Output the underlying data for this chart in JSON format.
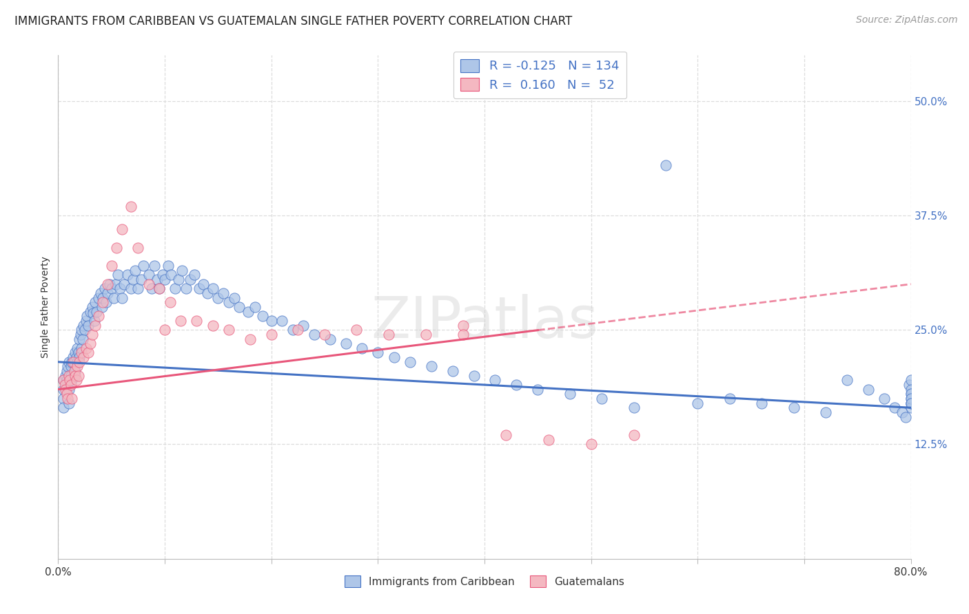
{
  "title": "IMMIGRANTS FROM CARIBBEAN VS GUATEMALAN SINGLE FATHER POVERTY CORRELATION CHART",
  "source": "Source: ZipAtlas.com",
  "ylabel": "Single Father Poverty",
  "ytick_labels": [
    "12.5%",
    "25.0%",
    "37.5%",
    "50.0%"
  ],
  "ytick_values": [
    0.125,
    0.25,
    0.375,
    0.5
  ],
  "xlim": [
    0.0,
    0.8
  ],
  "ylim": [
    0.0,
    0.55
  ],
  "legend_entry1": {
    "color": "#aec6e8",
    "R": "-0.125",
    "N": "134",
    "label": "Immigrants from Caribbean"
  },
  "legend_entry2": {
    "color": "#f4b8c1",
    "R": "0.160",
    "N": "52",
    "label": "Guatemalans"
  },
  "scatter_color1": "#aec6e8",
  "scatter_color2": "#f4b8c1",
  "line_color1": "#4472c4",
  "line_color2": "#e8567a",
  "watermark": "ZIPatlas",
  "title_fontsize": 12,
  "axis_label_fontsize": 10,
  "tick_fontsize": 11,
  "source_fontsize": 10,
  "background_color": "#ffffff",
  "grid_color": "#dddddd",
  "caribbean_x": [
    0.005,
    0.005,
    0.005,
    0.005,
    0.007,
    0.007,
    0.008,
    0.008,
    0.009,
    0.01,
    0.01,
    0.01,
    0.012,
    0.012,
    0.013,
    0.013,
    0.014,
    0.015,
    0.015,
    0.016,
    0.016,
    0.017,
    0.018,
    0.018,
    0.019,
    0.02,
    0.02,
    0.021,
    0.022,
    0.022,
    0.023,
    0.024,
    0.025,
    0.026,
    0.027,
    0.028,
    0.03,
    0.032,
    0.033,
    0.034,
    0.035,
    0.036,
    0.038,
    0.04,
    0.041,
    0.042,
    0.044,
    0.045,
    0.046,
    0.048,
    0.05,
    0.052,
    0.054,
    0.056,
    0.058,
    0.06,
    0.062,
    0.065,
    0.068,
    0.07,
    0.072,
    0.075,
    0.078,
    0.08,
    0.085,
    0.088,
    0.09,
    0.093,
    0.095,
    0.098,
    0.1,
    0.103,
    0.106,
    0.11,
    0.113,
    0.116,
    0.12,
    0.124,
    0.128,
    0.132,
    0.136,
    0.14,
    0.145,
    0.15,
    0.155,
    0.16,
    0.165,
    0.17,
    0.178,
    0.185,
    0.192,
    0.2,
    0.21,
    0.22,
    0.23,
    0.24,
    0.255,
    0.27,
    0.285,
    0.3,
    0.315,
    0.33,
    0.35,
    0.37,
    0.39,
    0.41,
    0.43,
    0.45,
    0.48,
    0.51,
    0.54,
    0.57,
    0.6,
    0.63,
    0.66,
    0.69,
    0.72,
    0.74,
    0.76,
    0.775,
    0.785,
    0.792,
    0.795,
    0.798,
    0.8,
    0.8,
    0.8,
    0.8,
    0.8,
    0.8,
    0.8,
    0.8,
    0.8,
    0.8
  ],
  "caribbean_y": [
    0.195,
    0.185,
    0.175,
    0.165,
    0.2,
    0.19,
    0.205,
    0.195,
    0.21,
    0.215,
    0.185,
    0.17,
    0.21,
    0.2,
    0.215,
    0.195,
    0.22,
    0.215,
    0.2,
    0.225,
    0.205,
    0.22,
    0.23,
    0.215,
    0.225,
    0.24,
    0.22,
    0.245,
    0.25,
    0.23,
    0.24,
    0.255,
    0.25,
    0.26,
    0.265,
    0.255,
    0.27,
    0.275,
    0.268,
    0.26,
    0.28,
    0.27,
    0.285,
    0.29,
    0.275,
    0.285,
    0.295,
    0.28,
    0.29,
    0.3,
    0.295,
    0.285,
    0.3,
    0.31,
    0.295,
    0.285,
    0.3,
    0.31,
    0.295,
    0.305,
    0.315,
    0.295,
    0.305,
    0.32,
    0.31,
    0.295,
    0.32,
    0.305,
    0.295,
    0.31,
    0.305,
    0.32,
    0.31,
    0.295,
    0.305,
    0.315,
    0.295,
    0.305,
    0.31,
    0.295,
    0.3,
    0.29,
    0.295,
    0.285,
    0.29,
    0.28,
    0.285,
    0.275,
    0.27,
    0.275,
    0.265,
    0.26,
    0.26,
    0.25,
    0.255,
    0.245,
    0.24,
    0.235,
    0.23,
    0.225,
    0.22,
    0.215,
    0.21,
    0.205,
    0.2,
    0.195,
    0.19,
    0.185,
    0.18,
    0.175,
    0.165,
    0.43,
    0.17,
    0.175,
    0.17,
    0.165,
    0.16,
    0.195,
    0.185,
    0.175,
    0.165,
    0.16,
    0.155,
    0.19,
    0.18,
    0.175,
    0.17,
    0.195,
    0.185,
    0.18,
    0.17,
    0.165,
    0.175,
    0.17
  ],
  "guatemalan_x": [
    0.005,
    0.006,
    0.007,
    0.008,
    0.009,
    0.01,
    0.011,
    0.012,
    0.013,
    0.014,
    0.015,
    0.016,
    0.017,
    0.018,
    0.019,
    0.02,
    0.022,
    0.024,
    0.026,
    0.028,
    0.03,
    0.032,
    0.035,
    0.038,
    0.042,
    0.046,
    0.05,
    0.055,
    0.06,
    0.068,
    0.075,
    0.085,
    0.095,
    0.105,
    0.115,
    0.13,
    0.145,
    0.16,
    0.18,
    0.2,
    0.225,
    0.25,
    0.28,
    0.31,
    0.345,
    0.38,
    0.42,
    0.46,
    0.5,
    0.54,
    0.1,
    0.38
  ],
  "guatemalan_y": [
    0.195,
    0.19,
    0.185,
    0.18,
    0.175,
    0.2,
    0.195,
    0.19,
    0.175,
    0.215,
    0.205,
    0.2,
    0.195,
    0.21,
    0.2,
    0.215,
    0.225,
    0.22,
    0.23,
    0.225,
    0.235,
    0.245,
    0.255,
    0.265,
    0.28,
    0.3,
    0.32,
    0.34,
    0.36,
    0.385,
    0.34,
    0.3,
    0.295,
    0.28,
    0.26,
    0.26,
    0.255,
    0.25,
    0.24,
    0.245,
    0.25,
    0.245,
    0.25,
    0.245,
    0.245,
    0.255,
    0.135,
    0.13,
    0.125,
    0.135,
    0.25,
    0.245
  ]
}
